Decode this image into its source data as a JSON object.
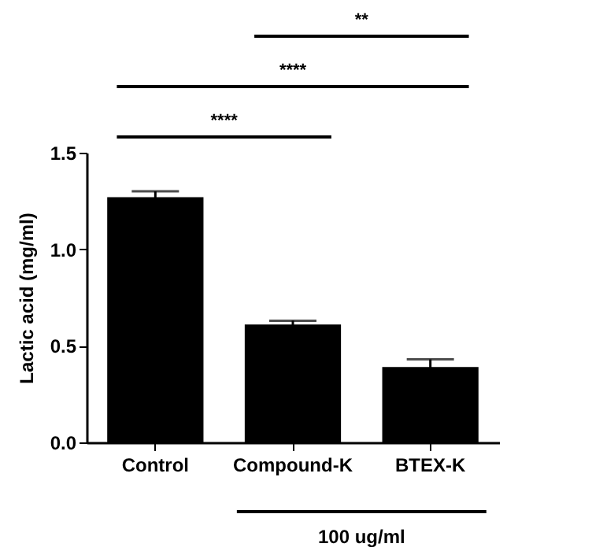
{
  "chart_data": {
    "type": "bar",
    "ylabel": "Lactic acid (mg/ml)",
    "categories": [
      "Control",
      "Compound-K",
      "BTEX-K"
    ],
    "values": [
      1.27,
      0.61,
      0.39
    ],
    "errors": [
      0.03,
      0.02,
      0.04
    ],
    "color": "#000000",
    "ylim": [
      0,
      1.5
    ],
    "yticks": [
      {
        "value": 0,
        "label": "0.0"
      },
      {
        "value": 0.5,
        "label": "0.5"
      },
      {
        "value": 1,
        "label": "1.0"
      },
      {
        "value": 1.5,
        "label": "1.5"
      }
    ],
    "grid": false,
    "annotations": [
      "****",
      "****",
      "**",
      "100 ug/ml"
    ]
  }
}
